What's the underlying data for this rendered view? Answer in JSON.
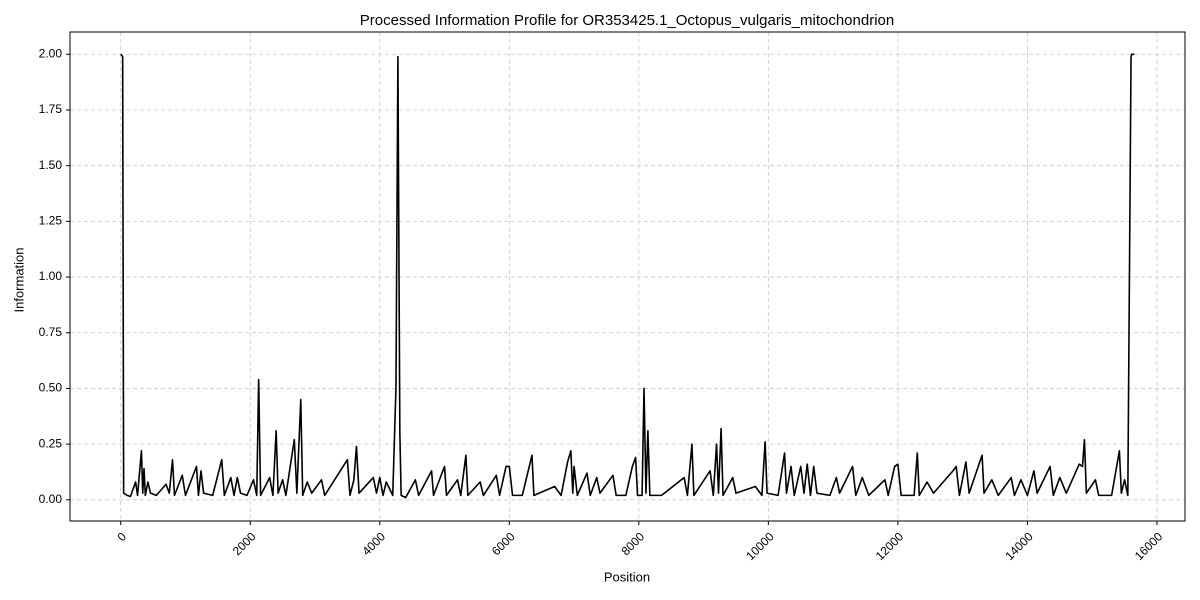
{
  "chart_data": {
    "type": "line",
    "title": "Processed Information Profile for OR353425.1_Octopus_vulgaris_mitochondrion",
    "x_label": "Position",
    "y_label": "Information",
    "grid": true,
    "xlim": [
      -783,
      16433
    ],
    "ylim": [
      -0.095,
      2.1
    ],
    "xticks": [
      0,
      2000,
      4000,
      6000,
      8000,
      10000,
      12000,
      14000,
      16000
    ],
    "yticks": [
      {
        "value": 0,
        "label": "0.00"
      },
      {
        "value": 0.25,
        "label": "0.25"
      },
      {
        "value": 0.5,
        "label": "0.50"
      },
      {
        "value": 0.75,
        "label": "0.75"
      },
      {
        "value": 1,
        "label": "1.00"
      },
      {
        "value": 1.25,
        "label": "1.25"
      },
      {
        "value": 1.5,
        "label": "1.50"
      },
      {
        "value": 1.75,
        "label": "1.75"
      },
      {
        "value": 2,
        "label": "2.00"
      }
    ],
    "color": "#000000",
    "x": [
      0,
      30,
      45,
      100,
      150,
      230,
      260,
      320,
      340,
      360,
      380,
      420,
      460,
      550,
      700,
      750,
      800,
      830,
      950,
      1000,
      1170,
      1200,
      1240,
      1280,
      1420,
      1560,
      1600,
      1700,
      1750,
      1800,
      1850,
      1950,
      2050,
      2100,
      2130,
      2160,
      2300,
      2350,
      2400,
      2430,
      2500,
      2550,
      2680,
      2720,
      2780,
      2810,
      2880,
      2950,
      3100,
      3150,
      3500,
      3540,
      3600,
      3640,
      3680,
      3900,
      3950,
      4000,
      4050,
      4100,
      4200,
      4250,
      4280,
      4310,
      4330,
      4400,
      4550,
      4600,
      4800,
      4830,
      5000,
      5030,
      5200,
      5250,
      5330,
      5360,
      5550,
      5600,
      5800,
      5850,
      5950,
      6000,
      6050,
      6200,
      6350,
      6380,
      6700,
      6800,
      6900,
      6950,
      6980,
      7000,
      7050,
      7200,
      7250,
      7350,
      7400,
      7600,
      7650,
      7800,
      7900,
      7950,
      7980,
      8050,
      8080,
      8110,
      8140,
      8170,
      8350,
      8700,
      8750,
      8820,
      8850,
      9100,
      9150,
      9200,
      9230,
      9270,
      9300,
      9450,
      9500,
      9800,
      9900,
      9950,
      9980,
      10150,
      10250,
      10280,
      10350,
      10400,
      10500,
      10550,
      10600,
      10650,
      10700,
      10750,
      10950,
      11050,
      11100,
      11300,
      11350,
      11450,
      11550,
      11800,
      11850,
      11950,
      12000,
      12050,
      12250,
      12300,
      12330,
      12450,
      12550,
      12850,
      12900,
      12950,
      13050,
      13100,
      13300,
      13330,
      13450,
      13550,
      13750,
      13800,
      13900,
      14000,
      14100,
      14150,
      14350,
      14400,
      14500,
      14600,
      14800,
      14850,
      14880,
      14910,
      15050,
      15100,
      15300,
      15420,
      15450,
      15500,
      15550,
      15600,
      15610,
      15650
    ],
    "values": [
      2.0,
      1.99,
      0.03,
      0.02,
      0.015,
      0.08,
      0.02,
      0.22,
      0.03,
      0.14,
      0.02,
      0.08,
      0.03,
      0.02,
      0.07,
      0.03,
      0.18,
      0.02,
      0.11,
      0.02,
      0.15,
      0.02,
      0.13,
      0.03,
      0.02,
      0.18,
      0.02,
      0.1,
      0.02,
      0.1,
      0.03,
      0.02,
      0.09,
      0.02,
      0.54,
      0.02,
      0.1,
      0.02,
      0.31,
      0.03,
      0.09,
      0.02,
      0.27,
      0.03,
      0.45,
      0.02,
      0.08,
      0.03,
      0.09,
      0.02,
      0.18,
      0.02,
      0.09,
      0.24,
      0.03,
      0.1,
      0.03,
      0.1,
      0.02,
      0.08,
      0.02,
      0.5,
      1.99,
      0.3,
      0.02,
      0.01,
      0.09,
      0.02,
      0.13,
      0.02,
      0.15,
      0.02,
      0.09,
      0.02,
      0.2,
      0.02,
      0.08,
      0.02,
      0.11,
      0.02,
      0.15,
      0.15,
      0.02,
      0.02,
      0.2,
      0.02,
      0.06,
      0.02,
      0.17,
      0.22,
      0.03,
      0.15,
      0.02,
      0.12,
      0.02,
      0.1,
      0.03,
      0.11,
      0.02,
      0.02,
      0.15,
      0.19,
      0.02,
      0.02,
      0.5,
      0.03,
      0.31,
      0.02,
      0.02,
      0.1,
      0.02,
      0.25,
      0.02,
      0.13,
      0.02,
      0.25,
      0.03,
      0.32,
      0.02,
      0.1,
      0.03,
      0.06,
      0.02,
      0.26,
      0.03,
      0.02,
      0.21,
      0.03,
      0.15,
      0.02,
      0.15,
      0.03,
      0.16,
      0.02,
      0.15,
      0.03,
      0.02,
      0.1,
      0.03,
      0.15,
      0.02,
      0.1,
      0.02,
      0.09,
      0.02,
      0.15,
      0.16,
      0.02,
      0.02,
      0.21,
      0.02,
      0.08,
      0.03,
      0.13,
      0.15,
      0.02,
      0.17,
      0.03,
      0.2,
      0.03,
      0.09,
      0.02,
      0.1,
      0.02,
      0.09,
      0.02,
      0.13,
      0.03,
      0.15,
      0.02,
      0.1,
      0.03,
      0.16,
      0.15,
      0.27,
      0.03,
      0.09,
      0.02,
      0.02,
      0.22,
      0.03,
      0.09,
      0.02,
      1.99,
      2.0,
      2.0
    ]
  }
}
